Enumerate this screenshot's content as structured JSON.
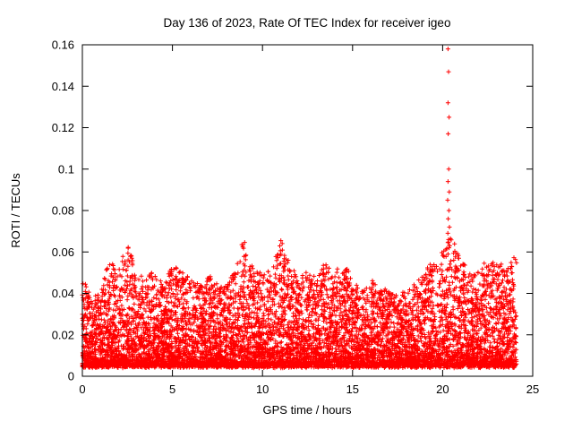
{
  "page": {
    "background": "#ffffff",
    "frame_color": "#000000",
    "text_color": "#000000"
  },
  "chart_data": {
    "type": "scatter",
    "title": "Day 136 of 2023, Rate Of TEC Index for receiver igeo",
    "xlabel": "GPS time / hours",
    "ylabel": "ROTI / TECUs",
    "xlim": [
      0,
      25
    ],
    "ylim": [
      0,
      0.16
    ],
    "x_ticks": [
      0,
      5,
      10,
      15,
      20,
      25
    ],
    "x_tick_labels": [
      "0",
      "5",
      "10",
      "15",
      "20",
      "25"
    ],
    "y_ticks": [
      0,
      0.02,
      0.04,
      0.06,
      0.08,
      0.1,
      0.12,
      0.14,
      0.16
    ],
    "y_tick_labels": [
      "0",
      "0.02",
      "0.04",
      "0.06",
      "0.08",
      "0.1",
      "0.12",
      "0.14",
      "0.16"
    ],
    "grid": false,
    "legend": "none",
    "marker": "plus",
    "marker_color": "#ff0000",
    "data_x_range": [
      0,
      24.1
    ],
    "band_min": 0.004,
    "point_count": 8000,
    "seed": 136,
    "envelope": [
      [
        0,
        0.047
      ],
      [
        0.5,
        0.036
      ],
      [
        1,
        0.04
      ],
      [
        1.5,
        0.058
      ],
      [
        2,
        0.052
      ],
      [
        2.5,
        0.063
      ],
      [
        3,
        0.05
      ],
      [
        3.5,
        0.046
      ],
      [
        4,
        0.052
      ],
      [
        4.5,
        0.042
      ],
      [
        5,
        0.055
      ],
      [
        5.5,
        0.05
      ],
      [
        6,
        0.046
      ],
      [
        6.5,
        0.042
      ],
      [
        7,
        0.048
      ],
      [
        7.5,
        0.044
      ],
      [
        8,
        0.042
      ],
      [
        8.5,
        0.055
      ],
      [
        9,
        0.065
      ],
      [
        9.5,
        0.05
      ],
      [
        10,
        0.048
      ],
      [
        10.5,
        0.052
      ],
      [
        11,
        0.067
      ],
      [
        11.5,
        0.055
      ],
      [
        12,
        0.046
      ],
      [
        12.5,
        0.05
      ],
      [
        13,
        0.046
      ],
      [
        13.5,
        0.055
      ],
      [
        14,
        0.05
      ],
      [
        14.5,
        0.055
      ],
      [
        15,
        0.046
      ],
      [
        15.5,
        0.04
      ],
      [
        16,
        0.047
      ],
      [
        16.5,
        0.042
      ],
      [
        17,
        0.04
      ],
      [
        17.5,
        0.038
      ],
      [
        18,
        0.04
      ],
      [
        18.5,
        0.044
      ],
      [
        19,
        0.05
      ],
      [
        19.5,
        0.055
      ],
      [
        20,
        0.06
      ],
      [
        20.5,
        0.067
      ],
      [
        21,
        0.056
      ],
      [
        21.5,
        0.05
      ],
      [
        22,
        0.05
      ],
      [
        22.5,
        0.055
      ],
      [
        23,
        0.058
      ],
      [
        23.5,
        0.05
      ],
      [
        24,
        0.058
      ]
    ],
    "spike_points": [
      [
        20.3,
        0.158
      ],
      [
        20.33,
        0.147
      ],
      [
        20.3,
        0.132
      ],
      [
        20.36,
        0.125
      ],
      [
        20.31,
        0.117
      ],
      [
        20.34,
        0.1
      ],
      [
        20.3,
        0.094
      ],
      [
        20.37,
        0.089
      ],
      [
        20.28,
        0.085
      ],
      [
        20.35,
        0.08
      ],
      [
        20.31,
        0.076
      ],
      [
        20.38,
        0.072
      ],
      [
        20.29,
        0.069
      ],
      [
        20.33,
        0.066
      ],
      [
        20.36,
        0.062
      ],
      [
        20.3,
        0.059
      ]
    ]
  }
}
